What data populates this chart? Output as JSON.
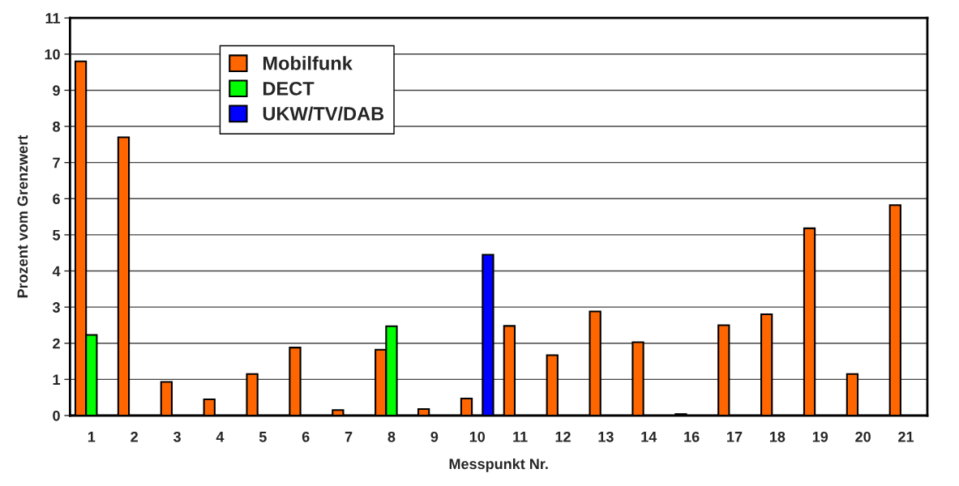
{
  "chart_data": {
    "type": "bar",
    "xlabel": "Messpunkt Nr.",
    "ylabel": "Prozent vom Grenzwert",
    "categories": [
      "1",
      "2",
      "3",
      "4",
      "5",
      "6",
      "7",
      "8",
      "9",
      "10",
      "11",
      "12",
      "13",
      "14",
      "16",
      "17",
      "18",
      "19",
      "20",
      "21"
    ],
    "series": [
      {
        "name": "Mobilfunk",
        "color": "#ff6600",
        "values": [
          9.8,
          7.7,
          0.93,
          0.45,
          1.15,
          1.88,
          0.15,
          1.82,
          0.18,
          0.47,
          2.48,
          1.67,
          2.88,
          2.03,
          0.04,
          2.5,
          2.8,
          5.18,
          1.15,
          5.82
        ]
      },
      {
        "name": "DECT",
        "color": "#00ff00",
        "values": [
          2.23,
          null,
          null,
          null,
          null,
          null,
          null,
          2.47,
          null,
          null,
          null,
          null,
          null,
          null,
          null,
          null,
          null,
          null,
          null,
          null
        ]
      },
      {
        "name": "UKW/TV/DAB",
        "color": "#0000ff",
        "values": [
          null,
          null,
          null,
          null,
          null,
          null,
          null,
          null,
          null,
          4.45,
          null,
          null,
          null,
          null,
          null,
          null,
          null,
          null,
          null,
          null
        ]
      }
    ],
    "ylim": [
      0,
      11
    ],
    "yticks": [
      0,
      1,
      2,
      3,
      4,
      5,
      6,
      7,
      8,
      9,
      10,
      11
    ],
    "grid": "y",
    "legend": "top left"
  }
}
